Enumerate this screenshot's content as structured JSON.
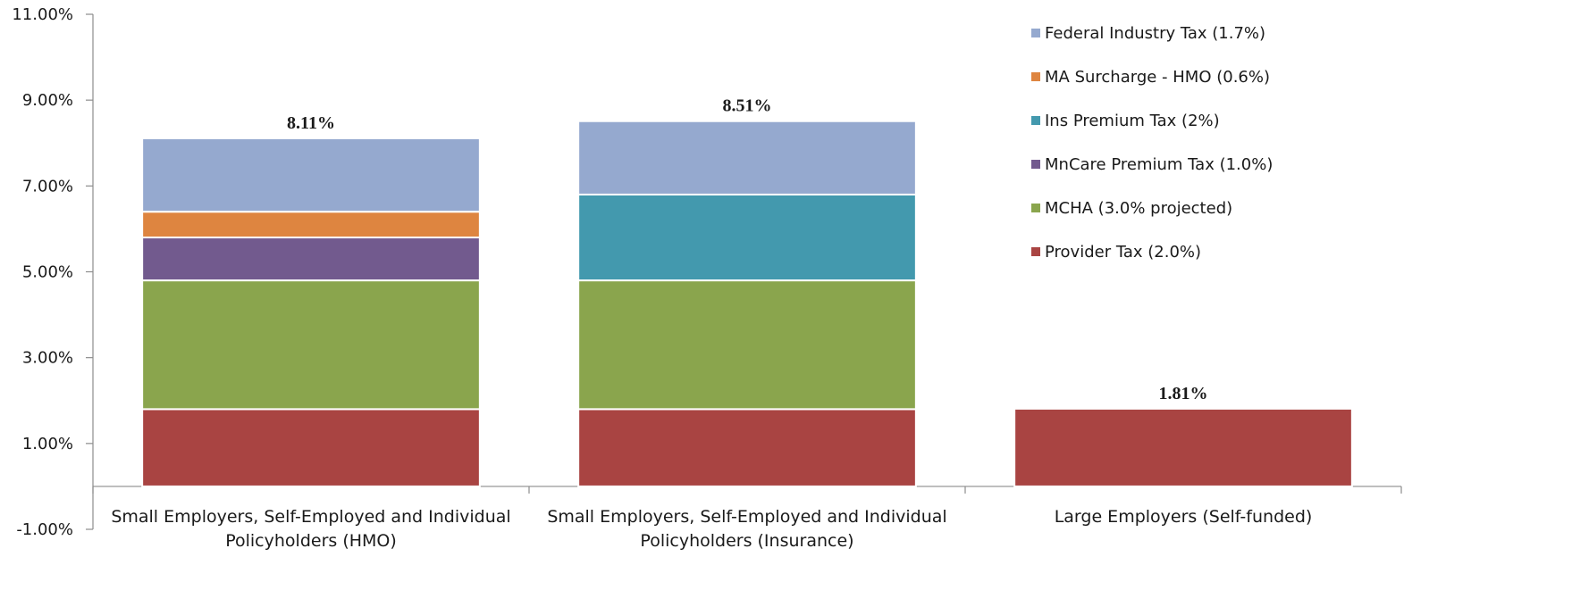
{
  "chart_data": {
    "type": "bar",
    "stacked": true,
    "categories": [
      [
        "Small Employers, Self-Employed and Individual",
        "Policyholders (HMO)"
      ],
      [
        "Small Employers, Self-Employed and Individual",
        "Policyholders (Insurance)"
      ],
      [
        "Large Employers (Self-funded)"
      ]
    ],
    "series": [
      {
        "name": "Provider Tax (2.0%)",
        "color": "#a94442",
        "values": [
          1.8,
          1.8,
          1.81
        ]
      },
      {
        "name": "MCHA (3.0% projected)",
        "color": "#8aa54d",
        "values": [
          3.0,
          3.0,
          0
        ]
      },
      {
        "name": "MnCare Premium Tax (1.0%)",
        "color": "#725a8e",
        "values": [
          1.0,
          0,
          0
        ]
      },
      {
        "name": "Ins Premium Tax (2%)",
        "color": "#4399ae",
        "values": [
          0,
          2.0,
          0
        ]
      },
      {
        "name": "MA Surcharge - HMO (0.6%)",
        "color": "#de8540",
        "values": [
          0.6,
          0,
          0
        ]
      },
      {
        "name": "Federal Industry Tax (1.7%)",
        "color": "#95a9cf",
        "values": [
          1.71,
          1.71,
          0
        ]
      }
    ],
    "totals": [
      "8.11%",
      "8.51%",
      "1.81%"
    ],
    "ylim": [
      -1,
      11
    ],
    "yticks": [
      -1,
      1,
      3,
      5,
      7,
      9,
      11
    ],
    "ytick_labels": [
      "-1.00%",
      "1.00%",
      "3.00%",
      "5.00%",
      "7.00%",
      "9.00%",
      "11.00%"
    ],
    "legend_position": "right",
    "grid": false
  }
}
